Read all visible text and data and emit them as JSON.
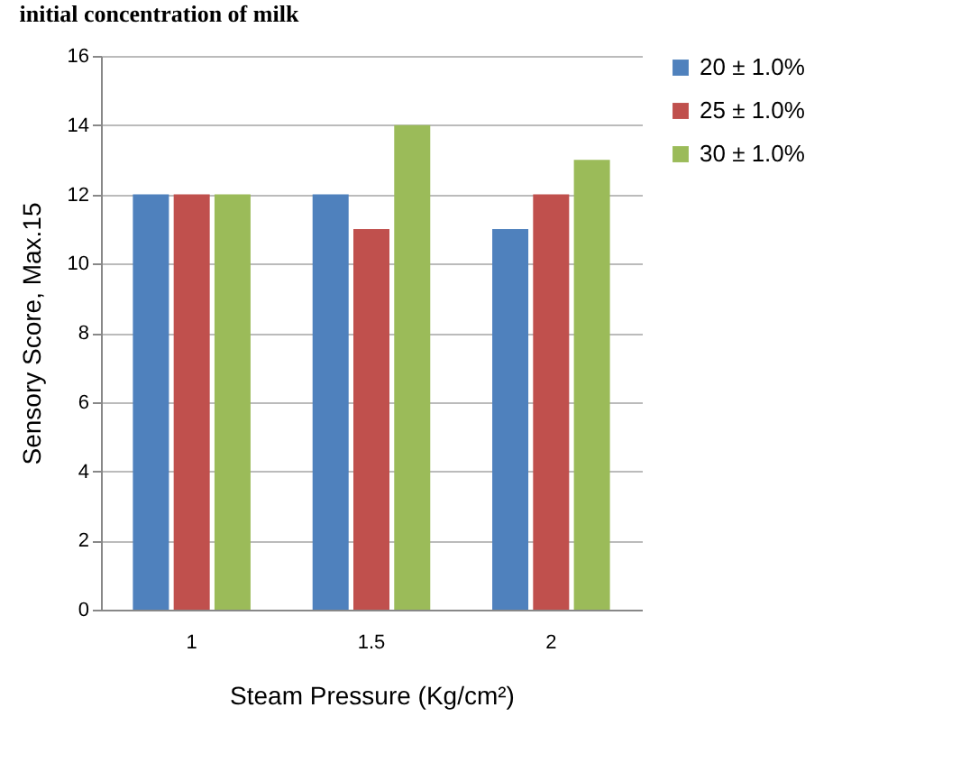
{
  "chart_data": {
    "type": "bar",
    "annotations": [
      "initial concentration of milk"
    ],
    "xlabel": "Steam Pressure (Kg/cm²)",
    "ylabel": "Sensory Score, Max.15",
    "categories": [
      "1",
      "1.5",
      "2"
    ],
    "series": [
      {
        "name": "20 ± 1.0%",
        "color": "#4f81bd",
        "values": [
          12,
          12,
          11
        ]
      },
      {
        "name": "25 ± 1.0%",
        "color": "#c0504d",
        "values": [
          12,
          11,
          12
        ]
      },
      {
        "name": "30 ± 1.0%",
        "color": "#9bbb59",
        "values": [
          12,
          14,
          13
        ]
      }
    ],
    "ylim": [
      0,
      16
    ],
    "yticks": [
      0,
      2,
      4,
      6,
      8,
      10,
      12,
      14,
      16
    ],
    "grid": "y",
    "legend": "right"
  }
}
